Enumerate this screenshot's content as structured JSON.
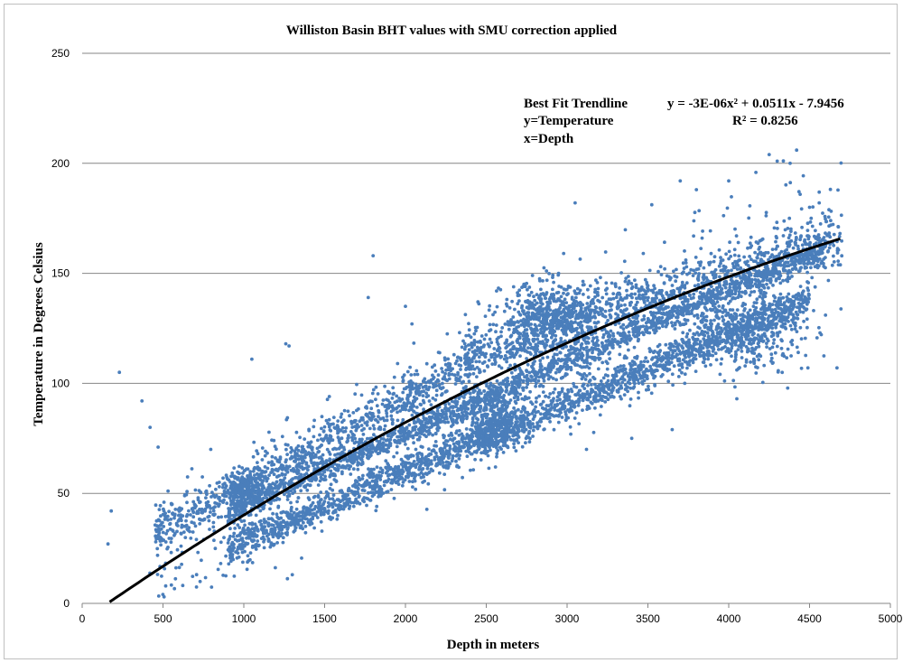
{
  "chart_data": {
    "type": "scatter",
    "title": "Williston Basin BHT values with SMU correction applied",
    "xlabel": "Depth in meters",
    "ylabel": "Temperature in Degrees Celsius",
    "xlim": [
      0,
      5000
    ],
    "ylim": [
      0,
      250
    ],
    "x_ticks": [
      "0",
      "500",
      "1000",
      "1500",
      "2000",
      "2500",
      "3000",
      "3500",
      "4000",
      "4500",
      "5000"
    ],
    "y_ticks": [
      "0",
      "50",
      "100",
      "150",
      "200",
      "250"
    ],
    "grid": "horizontal",
    "marker_color": "#4a7ebb",
    "trendline_color": "#000000",
    "annotation": {
      "line1_left": "Best Fit Trendline",
      "line2_left": "y=Temperature",
      "line3_left": "x=Depth",
      "equation": "y = -3E-06x² + 0.0511x - 7.9456",
      "r_squared": "R² = 0.8256"
    },
    "trendline": {
      "a": -3e-06,
      "b": 0.0511,
      "c": -7.9456,
      "x_start": 170,
      "x_end": 4690
    },
    "bands": [
      {
        "x0": 900,
        "x1": 4500,
        "y0": 25,
        "y1": 138,
        "n": 2200,
        "spread": 4
      },
      {
        "x0": 900,
        "x1": 4600,
        "y0": 41,
        "y1": 162,
        "n": 1800,
        "spread": 3
      },
      {
        "x0": 450,
        "x1": 2400,
        "y0": 32,
        "y1": 108,
        "n": 900,
        "spread": 5
      },
      {
        "x0": 2350,
        "x1": 4700,
        "y0": 112,
        "y1": 165,
        "n": 1100,
        "spread": 6
      }
    ],
    "clusters": [
      {
        "x": 2900,
        "y": 130,
        "sx": 150,
        "sy": 8,
        "n": 500
      },
      {
        "x": 2550,
        "y": 82,
        "sx": 100,
        "sy": 7,
        "n": 400
      },
      {
        "x": 4100,
        "y": 123,
        "sx": 180,
        "sy": 9,
        "n": 400
      },
      {
        "x": 1000,
        "y": 52,
        "sx": 70,
        "sy": 4,
        "n": 200
      }
    ],
    "outliers": [
      [
        180,
        42
      ],
      [
        160,
        27
      ],
      [
        230,
        105
      ],
      [
        370,
        92
      ],
      [
        420,
        80
      ],
      [
        470,
        71
      ],
      [
        1260,
        118
      ],
      [
        1280,
        117
      ],
      [
        1800,
        158
      ],
      [
        1770,
        139
      ],
      [
        1050,
        111
      ],
      [
        2000,
        135
      ],
      [
        2040,
        127
      ],
      [
        3050,
        182
      ],
      [
        4250,
        204
      ],
      [
        4300,
        201
      ],
      [
        4380,
        200
      ],
      [
        4420,
        206
      ],
      [
        3700,
        192
      ],
      [
        3800,
        188
      ],
      [
        4000,
        192
      ],
      [
        4500,
        180
      ],
      [
        4560,
        182
      ],
      [
        4510,
        175
      ],
      [
        4490,
        107
      ],
      [
        4670,
        107
      ],
      [
        1300,
        13
      ],
      [
        3120,
        70
      ],
      [
        3400,
        75
      ],
      [
        4050,
        93
      ],
      [
        3650,
        79
      ]
    ]
  }
}
